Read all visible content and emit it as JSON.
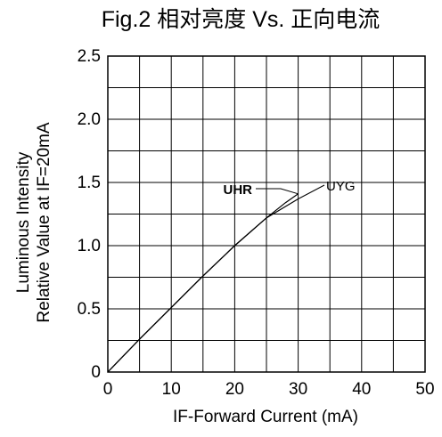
{
  "chart_data": {
    "type": "line",
    "title": "Fig.2 相对亮度 Vs. 正向电流",
    "xlabel": "IF-Forward Current (mA)",
    "ylabel_lines": [
      "Luminous Intensity",
      "Relative Value at IF=20mA"
    ],
    "xlim": [
      0,
      50
    ],
    "ylim": [
      0,
      2.5
    ],
    "x_ticks": [
      0,
      10,
      20,
      30,
      40,
      50
    ],
    "x_tick_labels": [
      "0",
      "10",
      "20",
      "30",
      "40",
      "50"
    ],
    "y_ticks": [
      0,
      0.5,
      1.0,
      1.5,
      2.0,
      2.5
    ],
    "y_tick_labels": [
      "0",
      "0.5",
      "1.0",
      "1.5",
      "2.0",
      "2.5"
    ],
    "x_gridlines": [
      0,
      5,
      10,
      15,
      20,
      25,
      30,
      35,
      40,
      45,
      50
    ],
    "y_gridlines": [
      0,
      0.25,
      0.5,
      0.75,
      1.0,
      1.25,
      1.5,
      1.75,
      2.0,
      2.25,
      2.5
    ],
    "grid": true,
    "series": [
      {
        "name": "UHR",
        "x": [
          0,
          5,
          10,
          15,
          20,
          25,
          28,
          30
        ],
        "y": [
          0,
          0.26,
          0.51,
          0.76,
          1.0,
          1.22,
          1.34,
          1.41
        ]
      },
      {
        "name": "UYG",
        "x": [
          0,
          5,
          10,
          15,
          20,
          25,
          28,
          30
        ],
        "y": [
          0,
          0.26,
          0.51,
          0.76,
          1.0,
          1.22,
          1.31,
          1.37
        ]
      }
    ],
    "annotations": [
      {
        "text": "UHR",
        "points_to": {
          "x": 30,
          "y": 1.41
        }
      },
      {
        "text": "UYG",
        "points_to": {
          "x": 30,
          "y": 1.37
        }
      }
    ]
  }
}
